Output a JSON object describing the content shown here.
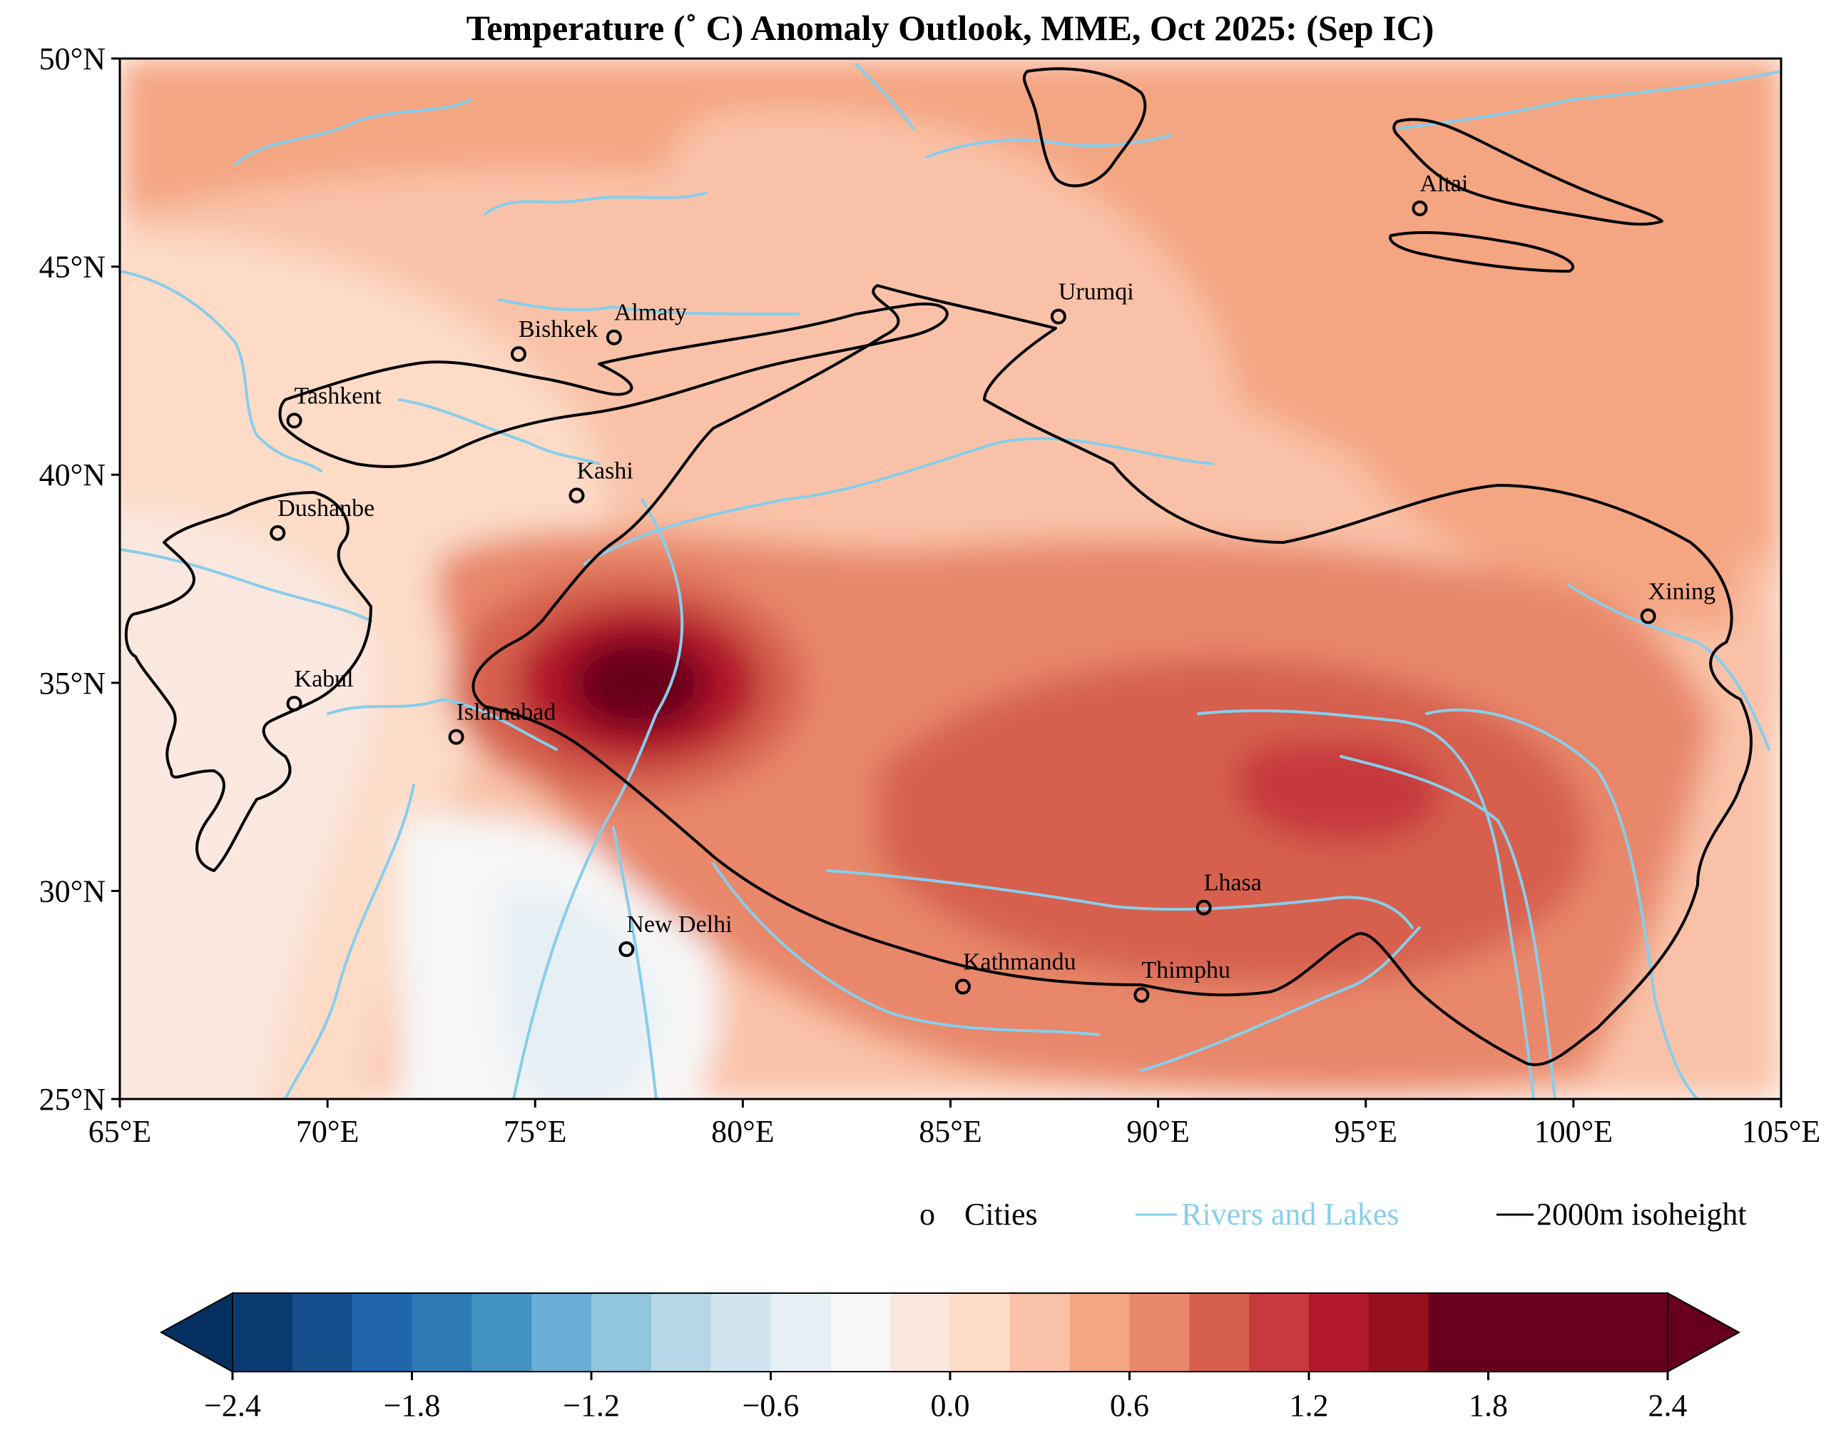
{
  "title": "Temperature (˚ C) Anomaly Outlook, MME, Oct  2025:  (Sep IC)",
  "map": {
    "lon_range": [
      65,
      105
    ],
    "lat_range": [
      25,
      50
    ],
    "lon_ticks": [
      "65°E",
      "70°E",
      "75°E",
      "80°E",
      "85°E",
      "90°E",
      "95°E",
      "100°E",
      "105°E"
    ],
    "lat_ticks": [
      "50°N",
      "45°N",
      "40°N",
      "35°N",
      "30°N",
      "25°N"
    ],
    "colors": {
      "rivers": "#87CEEB",
      "isoheight": "#000000",
      "city_marker": "#000000"
    }
  },
  "cities": [
    {
      "name": "Altai",
      "lon": 96.3,
      "lat": 46.4
    },
    {
      "name": "Urumqi",
      "lon": 87.6,
      "lat": 43.8
    },
    {
      "name": "Almaty",
      "lon": 76.9,
      "lat": 43.3
    },
    {
      "name": "Bishkek",
      "lon": 74.6,
      "lat": 42.9
    },
    {
      "name": "Tashkent",
      "lon": 69.2,
      "lat": 41.3
    },
    {
      "name": "Kashi",
      "lon": 76.0,
      "lat": 39.5
    },
    {
      "name": "Dushanbe",
      "lon": 68.8,
      "lat": 38.6
    },
    {
      "name": "Xining",
      "lon": 101.8,
      "lat": 36.6
    },
    {
      "name": "Kabul",
      "lon": 69.2,
      "lat": 34.5
    },
    {
      "name": "Islamabad",
      "lon": 73.1,
      "lat": 33.7
    },
    {
      "name": "Lhasa",
      "lon": 91.1,
      "lat": 29.6
    },
    {
      "name": "New Delhi",
      "lon": 77.2,
      "lat": 28.6
    },
    {
      "name": "Kathmandu",
      "lon": 85.3,
      "lat": 27.7
    },
    {
      "name": "Thimphu",
      "lon": 89.6,
      "lat": 27.5
    }
  ],
  "legend": {
    "cities_marker": "o",
    "cities_label": "Cities",
    "rivers_label": "Rivers and Lakes",
    "isoheight_label": "2000m isoheight"
  },
  "colorbar": {
    "ticks": [
      "−2.4",
      "−1.8",
      "−1.2",
      "−0.6",
      "0.0",
      "0.6",
      "1.2",
      "1.8",
      "2.4"
    ],
    "levels_min": -2.4,
    "levels_max": 2.4,
    "level_step": 0.2,
    "colors": [
      "#053061",
      "#0a3b70",
      "#174f8c",
      "#2166ac",
      "#2f79b5",
      "#4393c3",
      "#6aaed6",
      "#92c5de",
      "#b5d7e8",
      "#d1e5f0",
      "#e6eff4",
      "#f7f7f7",
      "#fae8e0",
      "#fddbc7",
      "#f9c2a8",
      "#f4a582",
      "#e8876a",
      "#d6604d",
      "#c7393c",
      "#b2182b",
      "#96101f",
      "#67001f"
    ],
    "under_color": "#053061",
    "over_color": "#67001f"
  }
}
